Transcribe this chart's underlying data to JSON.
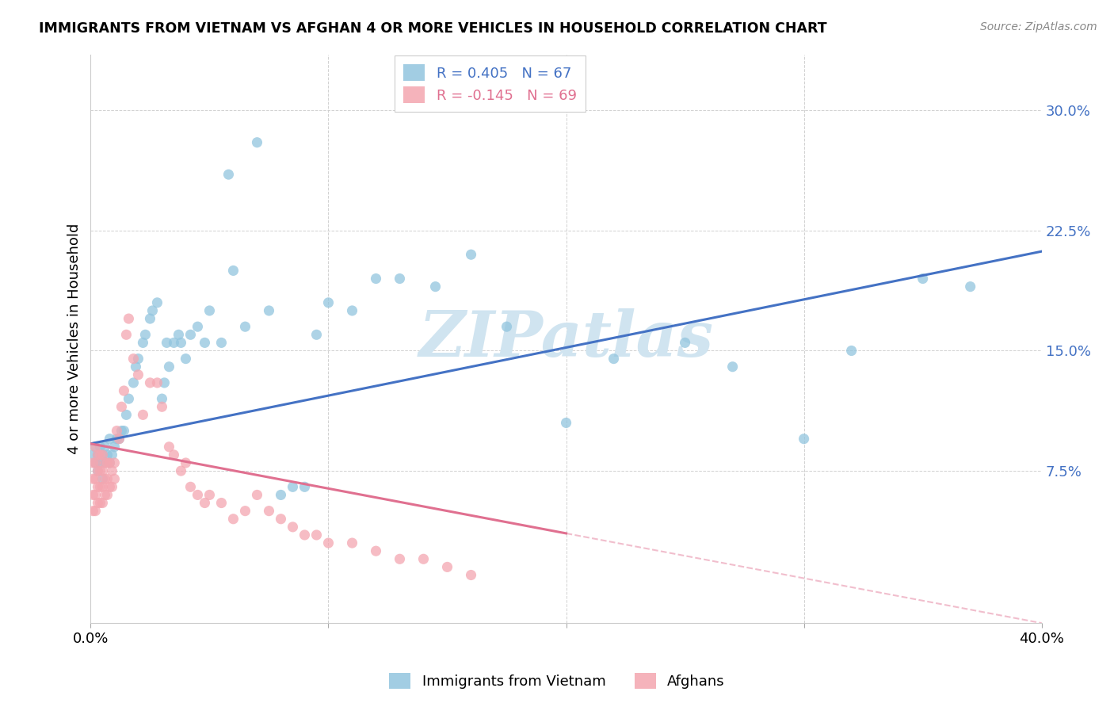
{
  "title": "IMMIGRANTS FROM VIETNAM VS AFGHAN 4 OR MORE VEHICLES IN HOUSEHOLD CORRELATION CHART",
  "source": "Source: ZipAtlas.com",
  "ylabel": "4 or more Vehicles in Household",
  "xlim": [
    0.0,
    0.4
  ],
  "ylim": [
    -0.02,
    0.335
  ],
  "yticks": [
    0.075,
    0.15,
    0.225,
    0.3
  ],
  "ytick_labels": [
    "7.5%",
    "15.0%",
    "22.5%",
    "30.0%"
  ],
  "xticks": [
    0.0,
    0.1,
    0.2,
    0.3,
    0.4
  ],
  "xtick_labels": [
    "0.0%",
    "",
    "",
    "",
    "40.0%"
  ],
  "legend_r1": "R = 0.405",
  "legend_n1": "N = 67",
  "legend_r2": "R = -0.145",
  "legend_n2": "N = 69",
  "vietnam_color": "#92c5de",
  "afghan_color": "#f4a6b0",
  "trend_vietnam_color": "#4472c4",
  "trend_afghan_color": "#e07090",
  "watermark": "ZIPatlas",
  "watermark_color": "#d0e4f0",
  "vietnam_x": [
    0.001,
    0.002,
    0.002,
    0.003,
    0.003,
    0.004,
    0.004,
    0.005,
    0.005,
    0.006,
    0.006,
    0.007,
    0.008,
    0.008,
    0.009,
    0.01,
    0.011,
    0.012,
    0.013,
    0.014,
    0.015,
    0.016,
    0.018,
    0.019,
    0.02,
    0.022,
    0.023,
    0.025,
    0.026,
    0.028,
    0.03,
    0.031,
    0.032,
    0.033,
    0.035,
    0.037,
    0.038,
    0.04,
    0.042,
    0.045,
    0.048,
    0.05,
    0.055,
    0.058,
    0.06,
    0.065,
    0.07,
    0.075,
    0.08,
    0.085,
    0.09,
    0.095,
    0.1,
    0.11,
    0.12,
    0.13,
    0.145,
    0.16,
    0.175,
    0.2,
    0.22,
    0.25,
    0.27,
    0.3,
    0.32,
    0.35,
    0.37
  ],
  "vietnam_y": [
    0.085,
    0.08,
    0.09,
    0.075,
    0.085,
    0.08,
    0.09,
    0.07,
    0.085,
    0.08,
    0.09,
    0.085,
    0.08,
    0.095,
    0.085,
    0.09,
    0.095,
    0.095,
    0.1,
    0.1,
    0.11,
    0.12,
    0.13,
    0.14,
    0.145,
    0.155,
    0.16,
    0.17,
    0.175,
    0.18,
    0.12,
    0.13,
    0.155,
    0.14,
    0.155,
    0.16,
    0.155,
    0.145,
    0.16,
    0.165,
    0.155,
    0.175,
    0.155,
    0.26,
    0.2,
    0.165,
    0.28,
    0.175,
    0.06,
    0.065,
    0.065,
    0.16,
    0.18,
    0.175,
    0.195,
    0.195,
    0.19,
    0.21,
    0.165,
    0.105,
    0.145,
    0.155,
    0.14,
    0.095,
    0.15,
    0.195,
    0.19
  ],
  "afghan_x": [
    0.001,
    0.001,
    0.001,
    0.001,
    0.002,
    0.002,
    0.002,
    0.002,
    0.002,
    0.003,
    0.003,
    0.003,
    0.003,
    0.004,
    0.004,
    0.004,
    0.004,
    0.005,
    0.005,
    0.005,
    0.005,
    0.006,
    0.006,
    0.006,
    0.007,
    0.007,
    0.007,
    0.008,
    0.008,
    0.009,
    0.009,
    0.01,
    0.01,
    0.011,
    0.012,
    0.013,
    0.014,
    0.015,
    0.016,
    0.018,
    0.02,
    0.022,
    0.025,
    0.028,
    0.03,
    0.033,
    0.035,
    0.038,
    0.04,
    0.042,
    0.045,
    0.048,
    0.05,
    0.055,
    0.06,
    0.065,
    0.07,
    0.075,
    0.08,
    0.085,
    0.09,
    0.095,
    0.1,
    0.11,
    0.12,
    0.13,
    0.14,
    0.15,
    0.16
  ],
  "afghan_y": [
    0.05,
    0.06,
    0.07,
    0.08,
    0.05,
    0.06,
    0.07,
    0.08,
    0.09,
    0.055,
    0.065,
    0.075,
    0.085,
    0.055,
    0.065,
    0.075,
    0.085,
    0.055,
    0.065,
    0.075,
    0.085,
    0.06,
    0.07,
    0.08,
    0.06,
    0.07,
    0.08,
    0.065,
    0.08,
    0.065,
    0.075,
    0.07,
    0.08,
    0.1,
    0.095,
    0.115,
    0.125,
    0.16,
    0.17,
    0.145,
    0.135,
    0.11,
    0.13,
    0.13,
    0.115,
    0.09,
    0.085,
    0.075,
    0.08,
    0.065,
    0.06,
    0.055,
    0.06,
    0.055,
    0.045,
    0.05,
    0.06,
    0.05,
    0.045,
    0.04,
    0.035,
    0.035,
    0.03,
    0.03,
    0.025,
    0.02,
    0.02,
    0.015,
    0.01
  ],
  "trend_vietnam_intercept": 0.092,
  "trend_vietnam_slope": 0.3,
  "trend_afghan_intercept": 0.092,
  "trend_afghan_slope": -0.28
}
